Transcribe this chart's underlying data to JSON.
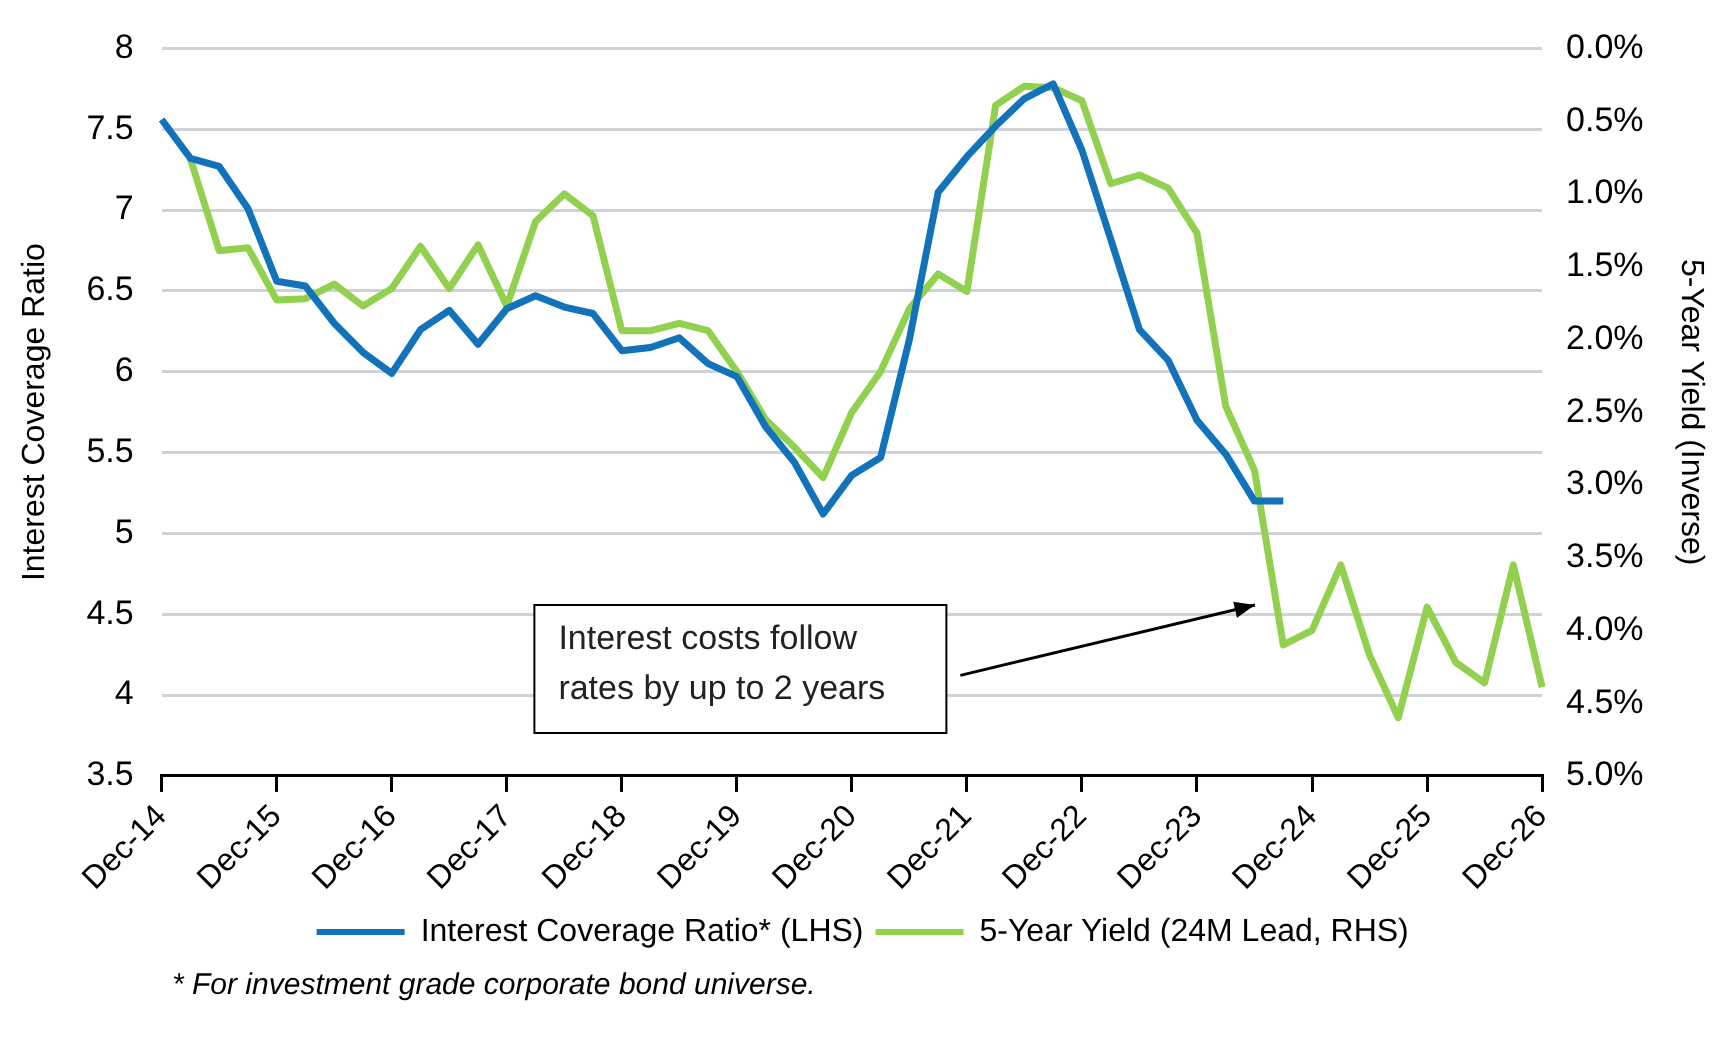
{
  "chart_data": {
    "type": "line",
    "ylabel": "Interest Coverage Ratio",
    "y2label": "5-Year Yield (Inverse)",
    "categories": [
      "Dec-14",
      null,
      null,
      null,
      "Dec-15",
      null,
      null,
      null,
      "Dec-16",
      null,
      null,
      null,
      "Dec-17",
      null,
      null,
      null,
      "Dec-18",
      null,
      null,
      null,
      "Dec-19",
      null,
      null,
      null,
      "Dec-20",
      null,
      null,
      null,
      "Dec-21",
      null,
      null,
      null,
      "Dec-22",
      null,
      null,
      null,
      "Dec-23",
      null,
      null,
      null,
      "Dec-24",
      null,
      null,
      null,
      "Dec-25",
      null,
      null,
      null,
      "Dec-26"
    ],
    "series": [
      {
        "name": "Interest Coverage Ratio* (LHS)",
        "color": "#1273ba",
        "values": [
          7.56,
          7.32,
          7.27,
          7.01,
          6.56,
          6.53,
          6.3,
          6.12,
          5.99,
          6.26,
          6.38,
          6.17,
          6.39,
          6.47,
          6.4,
          6.36,
          6.13,
          6.15,
          6.21,
          6.05,
          5.97,
          5.66,
          5.44,
          5.12,
          5.36,
          5.47,
          6.2,
          7.11,
          7.33,
          7.52,
          7.69,
          7.78,
          7.37,
          6.82,
          6.26,
          6.07,
          5.7,
          5.49,
          5.2,
          5.2,
          null,
          null,
          null,
          null,
          null,
          null,
          null,
          null,
          null
        ]
      },
      {
        "name": "5-Year Yield (24M Lead, RHS)",
        "color": "#92d050",
        "axis": "y2",
        "values": [
          null,
          0.76,
          1.39,
          1.37,
          1.73,
          1.72,
          1.62,
          1.77,
          1.65,
          1.36,
          1.65,
          1.35,
          1.77,
          1.19,
          1.0,
          1.15,
          1.94,
          1.94,
          1.89,
          1.94,
          2.22,
          2.55,
          2.74,
          2.95,
          2.5,
          2.22,
          1.79,
          1.55,
          1.67,
          0.39,
          0.26,
          0.27,
          0.36,
          0.93,
          0.87,
          0.96,
          1.27,
          2.46,
          2.9,
          4.1,
          4.0,
          3.55,
          4.17,
          4.6,
          3.84,
          4.22,
          4.36,
          3.55,
          4.39
        ]
      }
    ],
    "ylim": [
      3.5,
      8
    ],
    "yticks": [
      3.5,
      4,
      4.5,
      5,
      5.5,
      6,
      6.5,
      7,
      7.5,
      8
    ],
    "y2lim": [
      5,
      0
    ],
    "y2ticks": [
      {
        "value": 0,
        "label": "0.0%"
      },
      {
        "value": 0.5,
        "label": "0.5%"
      },
      {
        "value": 1,
        "label": "1.0%"
      },
      {
        "value": 1.5,
        "label": "1.5%"
      },
      {
        "value": 2,
        "label": "2.0%"
      },
      {
        "value": 2.5,
        "label": "2.5%"
      },
      {
        "value": 3,
        "label": "3.0%"
      },
      {
        "value": 3.5,
        "label": "3.5%"
      },
      {
        "value": 4,
        "label": "4.0%"
      },
      {
        "value": 4.5,
        "label": "4.5%"
      },
      {
        "value": 5,
        "label": "5.0%"
      }
    ],
    "grid": "y",
    "legend": "bottom",
    "marker": "none",
    "line_style": "solid",
    "annotations": [
      "Interest costs follow rates by up to 2 years",
      "* For investment grade corporate bond universe."
    ]
  }
}
